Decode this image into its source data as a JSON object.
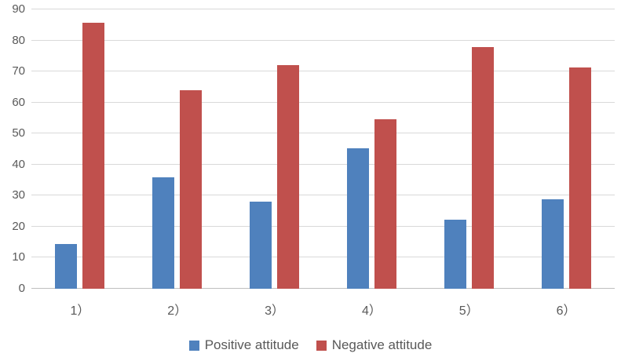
{
  "chart_data": {
    "type": "bar",
    "title": "",
    "xlabel": "",
    "ylabel": "",
    "categories": [
      "1）",
      "2）",
      "3）",
      "4）",
      "5）",
      "6）"
    ],
    "series": [
      {
        "name": "Positive attitude",
        "color": "#4F81BD",
        "values": [
          14.3,
          36,
          28,
          45.3,
          22.2,
          28.7
        ]
      },
      {
        "name": "Negative attitude",
        "color": "#C0504D",
        "values": [
          85.7,
          64,
          72,
          54.7,
          77.8,
          71.3
        ]
      }
    ],
    "ylim": [
      0,
      90
    ],
    "ytick_step": 10,
    "ytick_labels": [
      "0",
      "10",
      "20",
      "30",
      "40",
      "50",
      "60",
      "70",
      "80",
      "90"
    ],
    "grid": "horizontal",
    "gridline_color": "#d9d9d9",
    "axis_line_color": "#bfbfbf",
    "tick_label_color": "#595959",
    "legend_position": "bottom",
    "background_color": "#ffffff"
  }
}
